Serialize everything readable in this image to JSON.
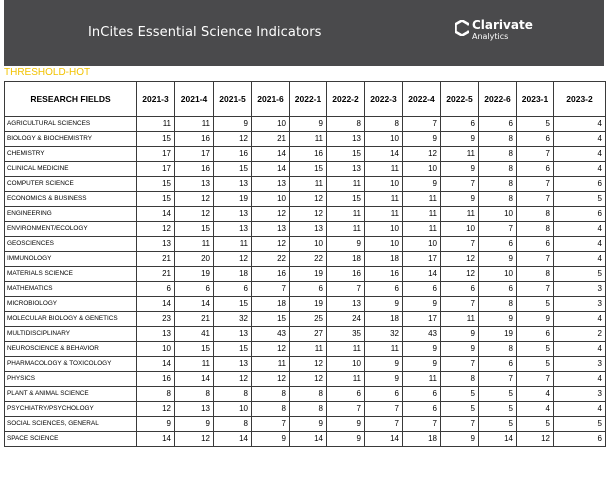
{
  "header": {
    "title": "InCites Essential Science Indicators",
    "brand": {
      "name": "Clarivate",
      "sub": "Analytics",
      "logo_icon": "clarivate-logo-icon"
    },
    "colors": {
      "banner": "#4a4a4c",
      "section_label": "#f2c200"
    }
  },
  "section_label": "THRESHOLD-HOT",
  "table": {
    "columns": [
      "RESEARCH FIELDS",
      "2021-3",
      "2021-4",
      "2021-5",
      "2021-6",
      "2022-1",
      "2022-2",
      "2022-3",
      "2022-4",
      "2022-5",
      "2022-6",
      "2023-1",
      "2023-2"
    ],
    "rows": [
      [
        "AGRICULTURAL SCIENCES",
        "11",
        "11",
        "9",
        "10",
        "9",
        "8",
        "8",
        "7",
        "6",
        "6",
        "5",
        "4"
      ],
      [
        "BIOLOGY & BIOCHEMISTRY",
        "15",
        "16",
        "12",
        "21",
        "11",
        "13",
        "10",
        "9",
        "9",
        "8",
        "6",
        "4"
      ],
      [
        "CHEMISTRY",
        "17",
        "17",
        "16",
        "14",
        "16",
        "15",
        "14",
        "12",
        "11",
        "8",
        "7",
        "4"
      ],
      [
        "CLINICAL MEDICINE",
        "17",
        "16",
        "15",
        "14",
        "15",
        "13",
        "11",
        "10",
        "9",
        "8",
        "6",
        "4"
      ],
      [
        "COMPUTER SCIENCE",
        "15",
        "13",
        "13",
        "13",
        "11",
        "11",
        "10",
        "9",
        "7",
        "8",
        "7",
        "6"
      ],
      [
        "ECONOMICS & BUSINESS",
        "15",
        "12",
        "19",
        "10",
        "12",
        "15",
        "11",
        "11",
        "9",
        "8",
        "7",
        "5"
      ],
      [
        "ENGINEERING",
        "14",
        "12",
        "13",
        "12",
        "12",
        "11",
        "11",
        "11",
        "11",
        "10",
        "8",
        "6"
      ],
      [
        "ENVIRONMENT/ECOLOGY",
        "12",
        "15",
        "13",
        "13",
        "13",
        "11",
        "10",
        "11",
        "10",
        "7",
        "8",
        "4"
      ],
      [
        "GEOSCIENCES",
        "13",
        "11",
        "11",
        "12",
        "10",
        "9",
        "10",
        "10",
        "7",
        "6",
        "6",
        "4"
      ],
      [
        "IMMUNOLOGY",
        "21",
        "20",
        "12",
        "22",
        "22",
        "18",
        "18",
        "17",
        "12",
        "9",
        "7",
        "4"
      ],
      [
        "MATERIALS SCIENCE",
        "21",
        "19",
        "18",
        "16",
        "19",
        "16",
        "16",
        "14",
        "12",
        "10",
        "8",
        "5"
      ],
      [
        "MATHEMATICS",
        "6",
        "6",
        "6",
        "7",
        "6",
        "7",
        "6",
        "6",
        "6",
        "6",
        "7",
        "3"
      ],
      [
        "MICROBIOLOGY",
        "14",
        "14",
        "15",
        "18",
        "19",
        "13",
        "9",
        "9",
        "7",
        "8",
        "5",
        "3"
      ],
      [
        "MOLECULAR BIOLOGY & GENETICS",
        "23",
        "21",
        "32",
        "15",
        "25",
        "24",
        "18",
        "17",
        "11",
        "9",
        "9",
        "4"
      ],
      [
        "MULTIDISCIPLINARY",
        "13",
        "41",
        "13",
        "43",
        "27",
        "35",
        "32",
        "43",
        "9",
        "19",
        "6",
        "2"
      ],
      [
        "NEUROSCIENCE & BEHAVIOR",
        "10",
        "15",
        "15",
        "12",
        "11",
        "11",
        "11",
        "9",
        "9",
        "8",
        "5",
        "4"
      ],
      [
        "PHARMACOLOGY & TOXICOLOGY",
        "14",
        "11",
        "13",
        "11",
        "12",
        "10",
        "9",
        "9",
        "7",
        "6",
        "5",
        "3"
      ],
      [
        "PHYSICS",
        "16",
        "14",
        "12",
        "12",
        "12",
        "11",
        "9",
        "11",
        "8",
        "7",
        "7",
        "4"
      ],
      [
        "PLANT & ANIMAL SCIENCE",
        "8",
        "8",
        "8",
        "8",
        "8",
        "6",
        "6",
        "6",
        "5",
        "5",
        "4",
        "3"
      ],
      [
        "PSYCHIATRY/PSYCHOLOGY",
        "12",
        "13",
        "10",
        "8",
        "8",
        "7",
        "7",
        "6",
        "5",
        "5",
        "4",
        "4"
      ],
      [
        "SOCIAL SCIENCES, GENERAL",
        "9",
        "9",
        "8",
        "7",
        "9",
        "9",
        "7",
        "7",
        "7",
        "5",
        "5",
        "5"
      ],
      [
        "SPACE SCIENCE",
        "14",
        "12",
        "14",
        "9",
        "14",
        "9",
        "14",
        "18",
        "9",
        "14",
        "12",
        "6"
      ]
    ]
  }
}
